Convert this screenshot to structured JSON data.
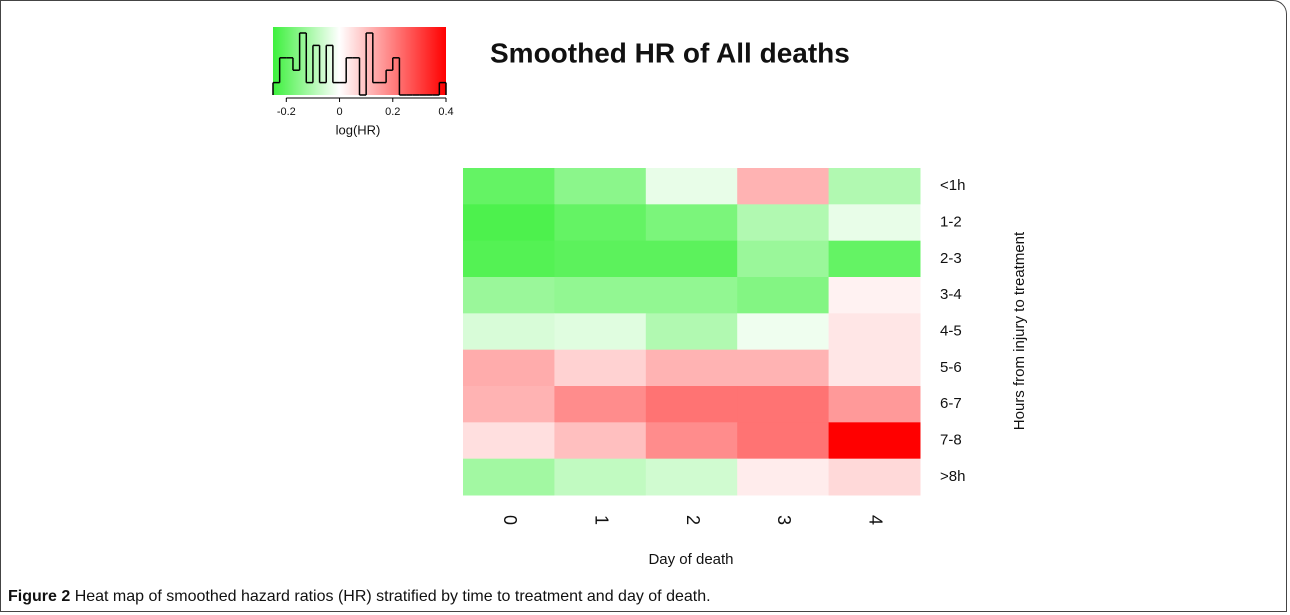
{
  "chart_data": {
    "type": "heatmap",
    "title": "Smoothed HR of All deaths",
    "xlabel": "Day of death",
    "ylabel": "Hours from injury to treatment",
    "categories": [
      "0",
      "1",
      "2",
      "3",
      "4"
    ],
    "rows": [
      "<1h",
      "1-2",
      "2-3",
      "3-4",
      "4-5",
      "5-6",
      "6-7",
      "7-8",
      ">8h"
    ],
    "values": [
      [
        -0.2,
        -0.15,
        -0.03,
        0.12,
        -0.1
      ],
      [
        -0.23,
        -0.2,
        -0.17,
        -0.1,
        -0.03
      ],
      [
        -0.22,
        -0.21,
        -0.21,
        -0.13,
        -0.2
      ],
      [
        -0.13,
        -0.14,
        -0.14,
        -0.16,
        0.02
      ],
      [
        -0.05,
        -0.04,
        -0.1,
        -0.02,
        0.04
      ],
      [
        0.13,
        0.07,
        0.12,
        0.12,
        0.04
      ],
      [
        0.12,
        0.18,
        0.22,
        0.22,
        0.16
      ],
      [
        0.05,
        0.1,
        0.18,
        0.22,
        0.4
      ],
      [
        -0.12,
        -0.08,
        -0.06,
        0.03,
        0.06
      ]
    ],
    "colorscale": [
      {
        "value": -0.25,
        "color": "#3df03d"
      },
      {
        "value": 0,
        "color": "#ffffff"
      },
      {
        "value": 0.4,
        "color": "#ff0000"
      }
    ],
    "key": {
      "label": "log(HR)",
      "xlim": [
        -0.25,
        0.4
      ],
      "xticks": [
        -0.2,
        0,
        0.2,
        0.4
      ],
      "bins": [
        -0.25,
        -0.225,
        -0.2,
        -0.175,
        -0.15,
        -0.125,
        -0.1,
        -0.075,
        -0.05,
        -0.025,
        0,
        0.025,
        0.05,
        0.075,
        0.1,
        0.125,
        0.15,
        0.175,
        0.2,
        0.225,
        0.25,
        0.275,
        0.3,
        0.325,
        0.35,
        0.375,
        0.4
      ],
      "counts": [
        1,
        3,
        3,
        2,
        5,
        1,
        4,
        1,
        4,
        1,
        1,
        3,
        3,
        0,
        5,
        1,
        1,
        2,
        3,
        0,
        0,
        0,
        0,
        0,
        0,
        1
      ]
    }
  },
  "caption": {
    "label": "Figure 2",
    "text": "Heat map of smoothed hazard ratios (HR) stratified by time to treatment and day of death."
  }
}
